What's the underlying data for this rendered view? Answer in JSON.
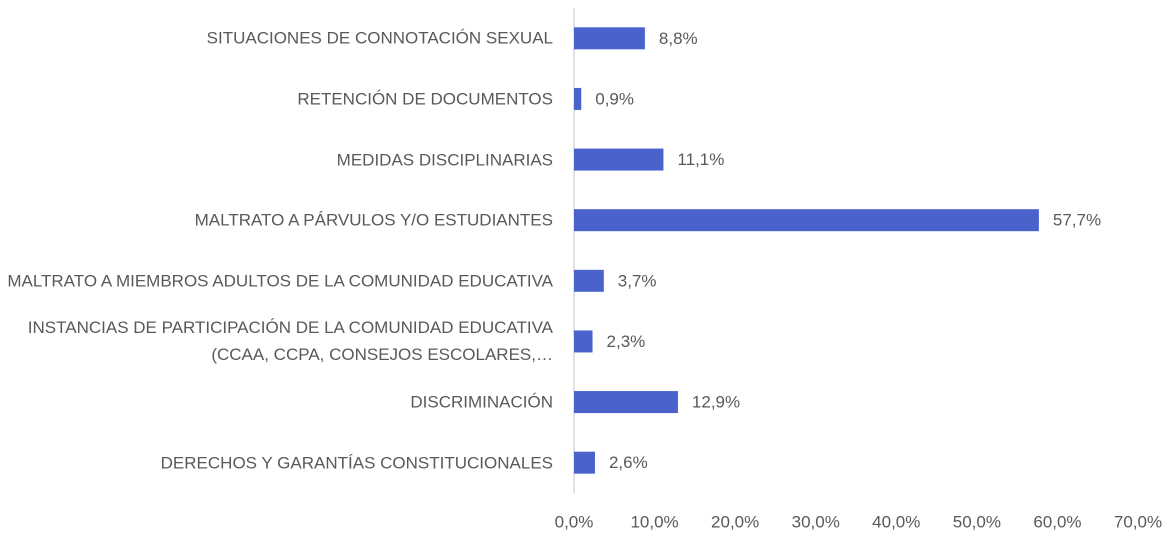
{
  "chart_data": {
    "type": "barh",
    "categories": [
      "SITUACIONES DE CONNOTACIÓN SEXUAL",
      "RETENCIÓN DE DOCUMENTOS",
      "MEDIDAS DISCIPLINARIAS",
      "MALTRATO A PÁRVULOS Y/O ESTUDIANTES",
      "MALTRATO A MIEMBROS ADULTOS DE LA COMUNIDAD EDUCATIVA",
      "INSTANCIAS DE PARTICIPACIÓN DE LA COMUNIDAD EDUCATIVA (CCAA, CCPA, CONSEJOS ESCOLARES,…",
      "DISCRIMINACIÓN",
      "DERECHOS Y GARANTÍAS CONSTITUCIONALES"
    ],
    "values": [
      8.8,
      0.9,
      11.1,
      57.7,
      3.7,
      2.3,
      12.9,
      2.6
    ],
    "value_labels": [
      "8,8%",
      "0,9%",
      "11,1%",
      "57,7%",
      "3,7%",
      "2,3%",
      "12,9%",
      "2,6%"
    ],
    "color": "#4a63cc",
    "xlim": [
      0,
      70
    ],
    "xticks": [
      {
        "value": 0,
        "label": "0,0%"
      },
      {
        "value": 10,
        "label": "10,0%"
      },
      {
        "value": 20,
        "label": "20,0%"
      },
      {
        "value": 30,
        "label": "30,0%"
      },
      {
        "value": 40,
        "label": "40,0%"
      },
      {
        "value": 50,
        "label": "50,0%"
      },
      {
        "value": 60,
        "label": "60,0%"
      },
      {
        "value": 70,
        "label": "70,0%"
      }
    ],
    "grid": false
  }
}
